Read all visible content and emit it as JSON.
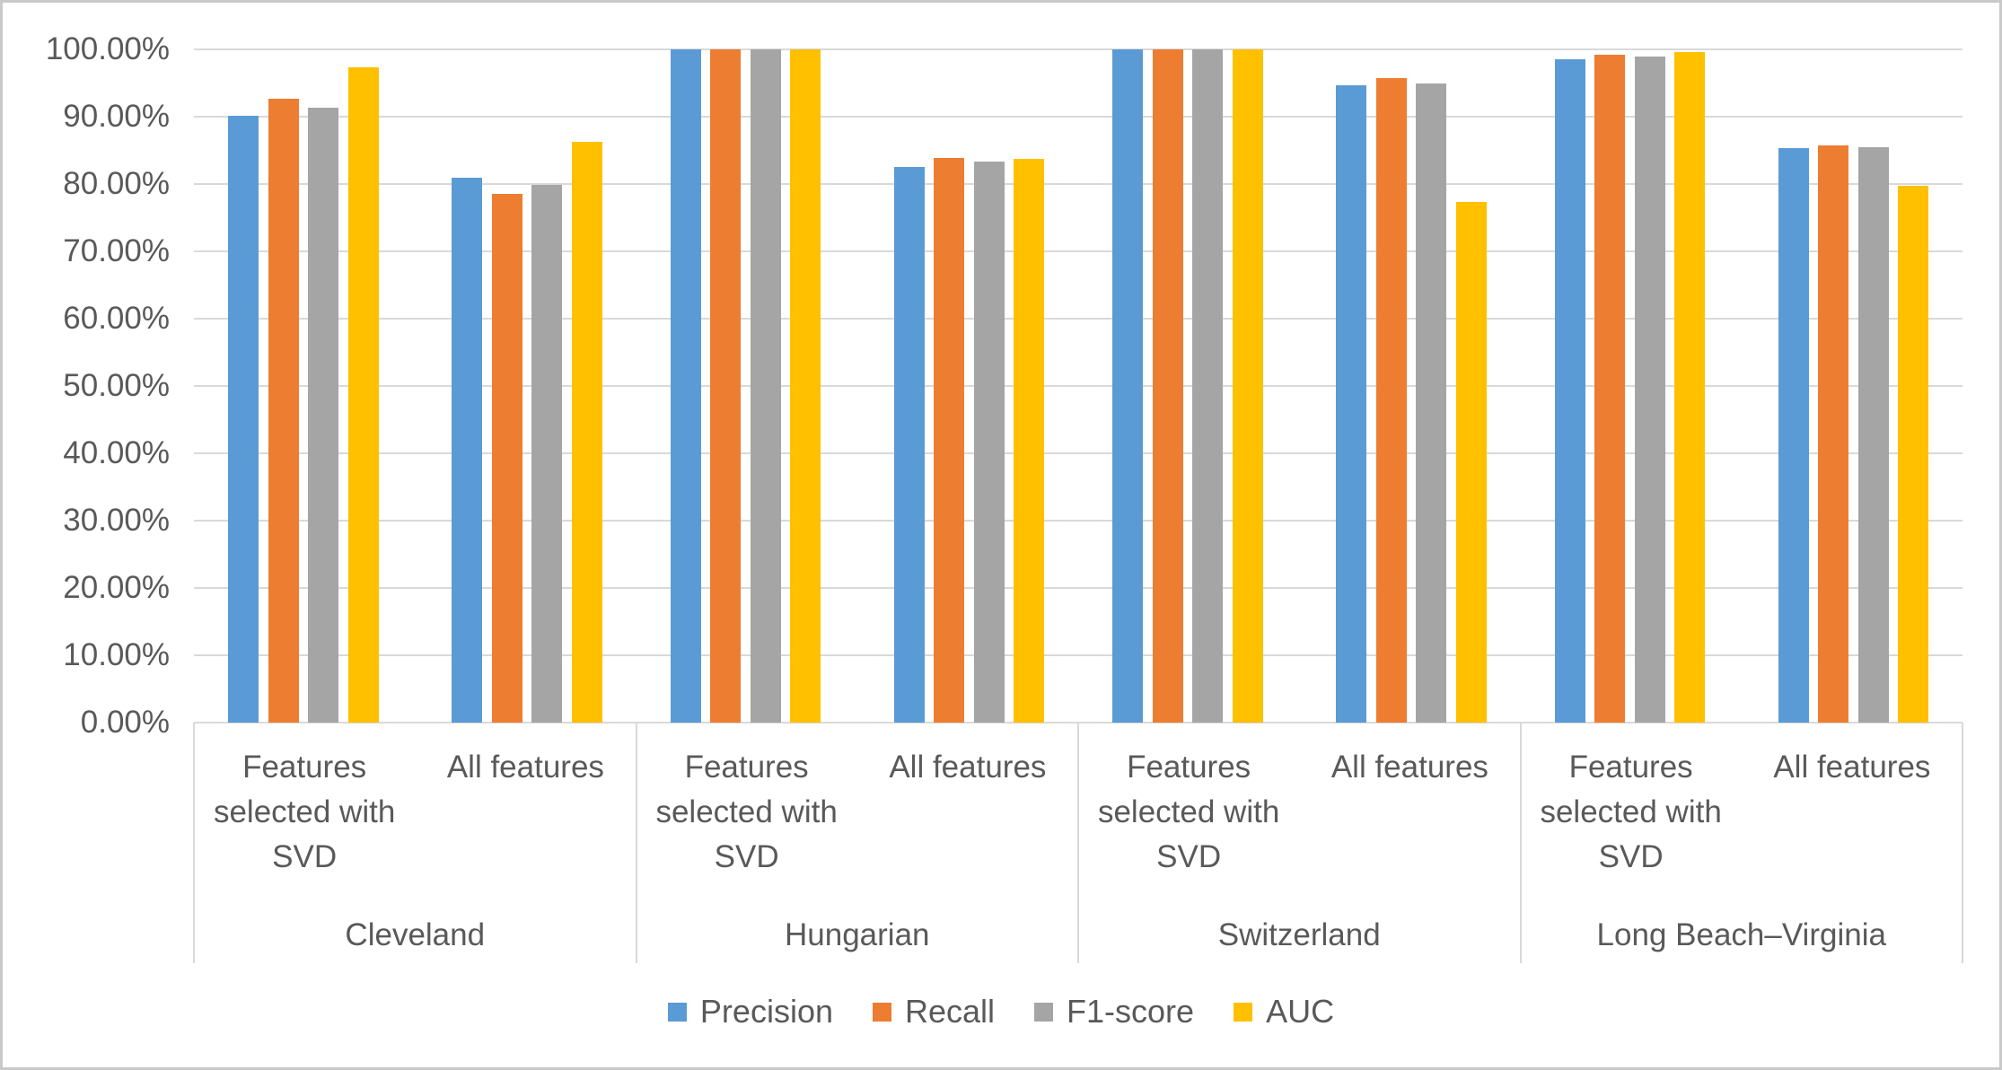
{
  "chart_data": {
    "type": "bar",
    "title": "",
    "unit": "percent",
    "groups": [
      "Cleveland",
      "Hungarian",
      "Switzerland",
      "Long Beach–Virginia"
    ],
    "subcategories": [
      "Features selected with SVD",
      "All features"
    ],
    "series": [
      {
        "name": "Precision",
        "color": "#5B9BD5",
        "values": [
          90.2,
          81.0,
          100,
          82.6,
          100,
          94.7,
          98.5,
          85.3
        ]
      },
      {
        "name": "Recall",
        "color": "#ED7D31",
        "values": [
          92.7,
          78.6,
          100,
          83.9,
          100,
          95.7,
          99.2,
          85.7
        ]
      },
      {
        "name": "F1-score",
        "color": "#A5A5A5",
        "values": [
          91.3,
          79.9,
          100,
          83.4,
          100,
          95.0,
          98.9,
          85.5
        ]
      },
      {
        "name": "AUC",
        "color": "#FFC000",
        "values": [
          97.3,
          86.3,
          100,
          83.8,
          100,
          77.3,
          99.6,
          79.8
        ]
      }
    ],
    "values_order_note": "values are ordered [Cleveland-SVD, Cleveland-All, Hungarian-SVD, Hungarian-All, Switzerland-SVD, Switzerland-All, LongBeachVirginia-SVD, LongBeachVirginia-All]",
    "y_axis": {
      "min": 0,
      "max": 100,
      "tick_step": 10,
      "ticks": [
        "100.00%",
        "90.00%",
        "80.00%",
        "70.00%",
        "60.00%",
        "50.00%",
        "40.00%",
        "30.00%",
        "20.00%",
        "10.00%",
        "0.00%"
      ]
    },
    "legend": {
      "position": "bottom",
      "items": [
        "Precision",
        "Recall",
        "F1-score",
        "AUC"
      ]
    },
    "grid": true
  },
  "colors": {
    "gridline": "#D9D9D9",
    "axis_text": "#595959",
    "frame_border": "#C9C9C9",
    "background": "#FFFFFF"
  }
}
